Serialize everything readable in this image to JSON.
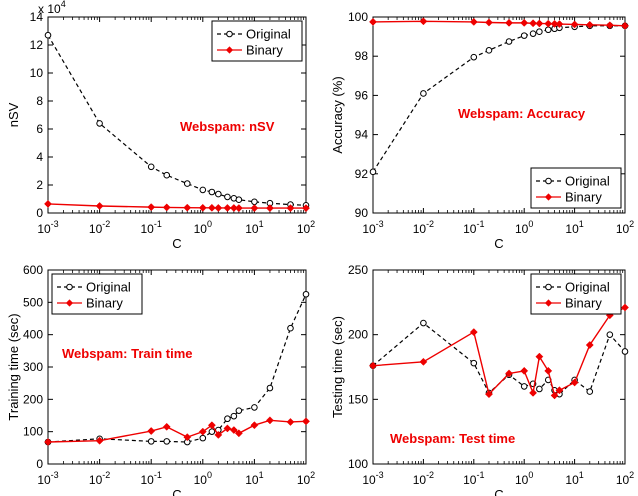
{
  "colors": {
    "original": "#000000",
    "binary": "#ee0000",
    "annotation": "#ee0000"
  },
  "chart_data": [
    {
      "type": "line",
      "id": "nsv",
      "xlabel": "C",
      "ylabel": "nSV",
      "xscale": "log",
      "xlim": [
        0.001,
        100
      ],
      "ylim": [
        0,
        14
      ],
      "yticks": [
        0,
        2,
        4,
        6,
        8,
        10,
        12,
        14
      ],
      "y_multiplier_label": "x 10",
      "y_multiplier_exp": "4",
      "annotation": "Webspam: nSV",
      "legend": "top-right",
      "series": [
        {
          "name": "Original",
          "style": "dashed-circle",
          "x": [
            0.001,
            0.01,
            0.1,
            0.2,
            0.5,
            1,
            1.5,
            2,
            3,
            4,
            5,
            10,
            20,
            50,
            100
          ],
          "y": [
            12.7,
            6.4,
            3.3,
            2.7,
            2.1,
            1.65,
            1.5,
            1.35,
            1.15,
            1.05,
            0.95,
            0.8,
            0.7,
            0.6,
            0.55
          ]
        },
        {
          "name": "Binary",
          "style": "solid-diamond",
          "x": [
            0.001,
            0.01,
            0.1,
            0.2,
            0.5,
            1,
            1.5,
            2,
            3,
            4,
            5,
            10,
            20,
            50,
            100
          ],
          "y": [
            0.65,
            0.5,
            0.42,
            0.4,
            0.38,
            0.37,
            0.37,
            0.36,
            0.36,
            0.36,
            0.35,
            0.35,
            0.35,
            0.35,
            0.35
          ]
        }
      ]
    },
    {
      "type": "line",
      "id": "accuracy",
      "xlabel": "C",
      "ylabel": "Accuracy (%)",
      "xscale": "log",
      "xlim": [
        0.001,
        100
      ],
      "ylim": [
        90,
        100
      ],
      "yticks": [
        90,
        92,
        94,
        96,
        98,
        100
      ],
      "annotation": "Webspam: Accuracy",
      "legend": "bottom-right",
      "series": [
        {
          "name": "Original",
          "style": "dashed-circle",
          "x": [
            0.001,
            0.01,
            0.1,
            0.2,
            0.5,
            1,
            1.5,
            2,
            3,
            4,
            5,
            10,
            20,
            50,
            100
          ],
          "y": [
            92.1,
            96.1,
            97.95,
            98.3,
            98.75,
            99.05,
            99.15,
            99.25,
            99.35,
            99.4,
            99.45,
            99.5,
            99.55,
            99.55,
            99.55
          ]
        },
        {
          "name": "Binary",
          "style": "solid-diamond",
          "x": [
            0.001,
            0.01,
            0.1,
            0.2,
            0.5,
            1,
            1.5,
            2,
            3,
            4,
            5,
            10,
            20,
            50,
            100
          ],
          "y": [
            99.75,
            99.78,
            99.75,
            99.72,
            99.7,
            99.7,
            99.68,
            99.67,
            99.66,
            99.65,
            99.64,
            99.62,
            99.6,
            99.58,
            99.55
          ]
        }
      ]
    },
    {
      "type": "line",
      "id": "train_time",
      "xlabel": "C",
      "ylabel": "Training time (sec)",
      "xscale": "log",
      "xlim": [
        0.001,
        100
      ],
      "ylim": [
        0,
        600
      ],
      "yticks": [
        0,
        100,
        200,
        300,
        400,
        500,
        600
      ],
      "annotation": "Webspam: Train time",
      "legend": "top-left",
      "series": [
        {
          "name": "Original",
          "style": "dashed-circle",
          "x": [
            0.001,
            0.01,
            0.1,
            0.2,
            0.5,
            1,
            1.5,
            2,
            3,
            4,
            5,
            10,
            20,
            50,
            100
          ],
          "y": [
            68,
            78,
            70,
            70,
            68,
            80,
            100,
            105,
            140,
            148,
            165,
            175,
            235,
            420,
            525
          ]
        },
        {
          "name": "Binary",
          "style": "solid-diamond",
          "x": [
            0.001,
            0.01,
            0.1,
            0.2,
            0.5,
            1,
            1.5,
            2,
            3,
            4,
            5,
            10,
            20,
            50,
            100
          ],
          "y": [
            68,
            72,
            102,
            115,
            83,
            100,
            120,
            90,
            110,
            105,
            95,
            120,
            135,
            130,
            132
          ]
        }
      ]
    },
    {
      "type": "line",
      "id": "test_time",
      "xlabel": "C",
      "ylabel": "Testing time (sec)",
      "xscale": "log",
      "xlim": [
        0.001,
        100
      ],
      "ylim": [
        100,
        250
      ],
      "yticks": [
        100,
        150,
        200,
        250
      ],
      "annotation": "Webspam: Test time",
      "legend": "top-right",
      "series": [
        {
          "name": "Original",
          "style": "dashed-circle",
          "x": [
            0.001,
            0.01,
            0.1,
            0.2,
            0.5,
            1,
            1.5,
            2,
            3,
            4,
            5,
            10,
            20,
            50,
            100
          ],
          "y": [
            176,
            209,
            178,
            155,
            169,
            160,
            162,
            158,
            165,
            157,
            154,
            165,
            156,
            200,
            187
          ]
        },
        {
          "name": "Binary",
          "style": "solid-diamond",
          "x": [
            0.001,
            0.01,
            0.1,
            0.2,
            0.5,
            1,
            1.5,
            2,
            3,
            4,
            5,
            10,
            20,
            50,
            100
          ],
          "y": [
            176,
            179,
            202,
            154,
            170,
            172,
            155,
            183,
            172,
            153,
            157,
            163,
            192,
            215,
            221
          ]
        }
      ]
    }
  ]
}
